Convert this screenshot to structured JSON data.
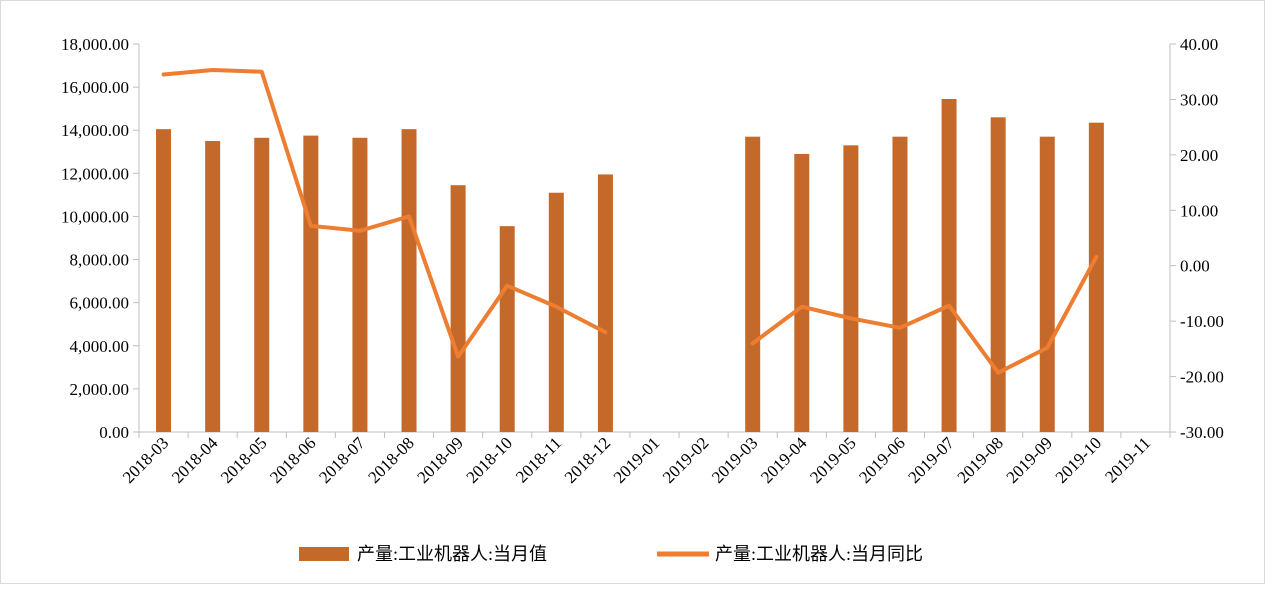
{
  "chart_data": {
    "type": "bar",
    "title": "",
    "categories": [
      "2018-03",
      "2018-04",
      "2018-05",
      "2018-06",
      "2018-07",
      "2018-08",
      "2018-09",
      "2018-10",
      "2018-11",
      "2018-12",
      "2019-01",
      "2019-02",
      "2019-03",
      "2019-04",
      "2019-05",
      "2019-06",
      "2019-07",
      "2019-08",
      "2019-09",
      "2019-10",
      "2019-11"
    ],
    "series": [
      {
        "name": "产量:工业机器人:当月值",
        "type": "bar",
        "axis": "left",
        "color": "#C5692B",
        "values": [
          14050,
          13500,
          13650,
          13750,
          13650,
          14050,
          11450,
          9550,
          11100,
          11950,
          null,
          null,
          13700,
          12900,
          13300,
          13700,
          15450,
          14600,
          13700,
          14350,
          null
        ]
      },
      {
        "name": "产量:工业机器人:当月同比",
        "type": "line",
        "axis": "right",
        "color": "#ED7D31",
        "values": [
          34.5,
          35.3,
          35.0,
          7.2,
          6.3,
          8.9,
          -16.4,
          -3.6,
          -7.4,
          -12.0,
          null,
          null,
          -14.0,
          -7.4,
          -9.5,
          -11.2,
          -7.2,
          -19.3,
          -14.8,
          1.6,
          null
        ]
      }
    ],
    "y_left": {
      "min": 0,
      "max": 18000,
      "ticks": [
        "0.00",
        "2,000.00",
        "4,000.00",
        "6,000.00",
        "8,000.00",
        "10,000.00",
        "12,000.00",
        "14,000.00",
        "16,000.00",
        "18,000.00"
      ]
    },
    "y_right": {
      "min": -30,
      "max": 40,
      "ticks": [
        "-30.00",
        "-20.00",
        "-10.00",
        "0.00",
        "10.00",
        "20.00",
        "30.00",
        "40.00"
      ]
    },
    "grid": false,
    "legend": "bottom"
  }
}
